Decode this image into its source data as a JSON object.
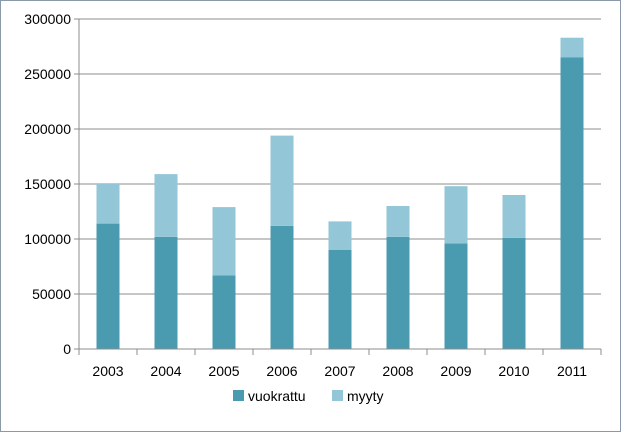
{
  "chart_data": {
    "type": "bar",
    "stacked": true,
    "categories": [
      "2003",
      "2004",
      "2005",
      "2006",
      "2007",
      "2008",
      "2009",
      "2010",
      "2011"
    ],
    "series": [
      {
        "name": "vuokrattu",
        "color": "#4a9bb0",
        "values": [
          114000,
          102000,
          67000,
          112000,
          90000,
          102000,
          96000,
          101000,
          265000
        ]
      },
      {
        "name": "myyty",
        "color": "#93c6d6",
        "values": [
          36000,
          57000,
          62000,
          82000,
          26000,
          28000,
          52000,
          39000,
          18000
        ]
      }
    ],
    "ylim": [
      0,
      300000
    ],
    "yticks": [
      0,
      50000,
      100000,
      150000,
      200000,
      250000,
      300000
    ],
    "grid": true,
    "legend_position": "bottom",
    "title": "",
    "xlabel": "",
    "ylabel": ""
  }
}
